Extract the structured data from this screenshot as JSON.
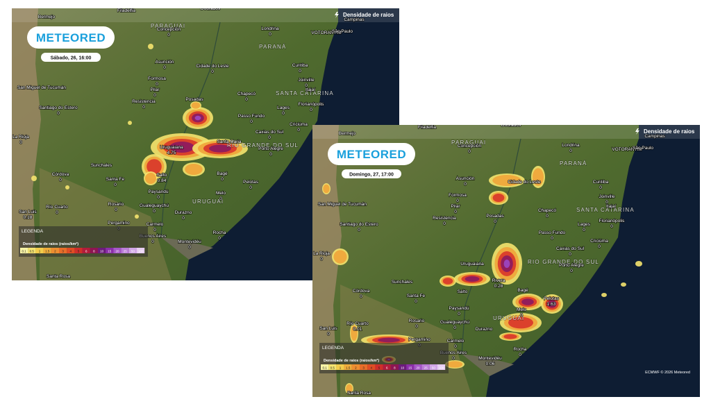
{
  "maps": [
    {
      "header": "Densidade de raios",
      "logo": "METEORED",
      "date": "Sábado, 26, 16:00",
      "legend": {
        "title": "LEGENDA",
        "scale_title": "Densidade de raios (raios/km²)",
        "scale": [
          "0.1",
          "0.5",
          "1",
          "1.5",
          "2",
          "3",
          "4",
          "5",
          "6",
          "8",
          "10",
          "15",
          "20",
          "25",
          "50",
          "100"
        ]
      },
      "regions": [
        "PARAGUAI",
        "PARANÁ",
        "SANTA CATARINA",
        "RIO GRANDE DO SUL",
        "URUGUAI"
      ],
      "labels": [
        {
          "name": "Bermejo"
        },
        {
          "name": "Filadelfia"
        },
        {
          "name": "Dourados"
        },
        {
          "name": "Campinas"
        },
        {
          "name": "Concepción",
          "value": "0"
        },
        {
          "name": "Londrina",
          "value": "0"
        },
        {
          "name": "VOTORANTIM"
        },
        {
          "name": "São Paulo"
        },
        {
          "name": "Asunción",
          "value": "0"
        },
        {
          "name": "Cidade do Leste",
          "value": "0"
        },
        {
          "name": "Curitiba",
          "value": "0"
        },
        {
          "name": "Formosa",
          "value": "0"
        },
        {
          "name": "Joinville",
          "value": "0"
        },
        {
          "name": "Pilar",
          "value": "0"
        },
        {
          "name": "Itajaí"
        },
        {
          "name": "San Miguel de Tucumán"
        },
        {
          "name": "Santiago do Estero",
          "value": "0"
        },
        {
          "name": "Resistencia",
          "value": "0"
        },
        {
          "name": "Posadas"
        },
        {
          "name": "Chapecó",
          "value": "0"
        },
        {
          "name": "Florianópolis",
          "value": "0"
        },
        {
          "name": "Lages",
          "value": "0"
        },
        {
          "name": "Passo Fundo",
          "value": "0"
        },
        {
          "name": "Criciúma",
          "value": "0"
        },
        {
          "name": "Caxias do Sul",
          "value": "0"
        },
        {
          "name": "La Rioja",
          "value": "0"
        },
        {
          "name": "Uruguaiana",
          "value": "4.75"
        },
        {
          "name": "Santa Maria"
        },
        {
          "name": "Porto Alegre",
          "value": "0"
        },
        {
          "name": "Sunchales"
        },
        {
          "name": "Córdova",
          "value": "0"
        },
        {
          "name": "Salto",
          "value": "0.84"
        },
        {
          "name": "Bagé",
          "value": "0"
        },
        {
          "name": "Santa Fe",
          "value": "0"
        },
        {
          "name": "Pelotas",
          "value": "0"
        },
        {
          "name": "Paysandú",
          "value": "0"
        },
        {
          "name": "Rosario",
          "value": "0"
        },
        {
          "name": "Río Cuarto",
          "value": "0"
        },
        {
          "name": "Gualeguaychú",
          "value": "0"
        },
        {
          "name": "Melo",
          "value": "0"
        },
        {
          "name": "San Luis",
          "value": "0.18"
        },
        {
          "name": "Durazno",
          "value": "0"
        },
        {
          "name": "Pergamino",
          "value": "0"
        },
        {
          "name": "Rocha",
          "value": "0"
        },
        {
          "name": "Carmelo",
          "value": "0"
        },
        {
          "name": "Buenos Aires",
          "value": "0"
        },
        {
          "name": "Montevidéu",
          "value": "0"
        },
        {
          "name": "Santa Rosa"
        }
      ]
    },
    {
      "header": "Densidade de raios",
      "logo": "METEORED",
      "date": "Domingo, 27, 17:00",
      "legend": {
        "title": "LEGENDA",
        "scale_title": "Densidade de raios (raios/km²)",
        "scale": [
          "0.1",
          "0.5",
          "1",
          "1.5",
          "2",
          "3",
          "4",
          "5",
          "6",
          "8",
          "10",
          "15",
          "20",
          "25",
          "50",
          "100"
        ]
      },
      "regions": [
        "PARAGUAI",
        "PARANÁ",
        "SANTA CATARINA",
        "RIO GRANDE DO SUL",
        "URUGUAI"
      ],
      "credit": "ECMWF © 2026 Meteored",
      "labels": [
        {
          "name": "Bermejo"
        },
        {
          "name": "Filadelfia"
        },
        {
          "name": "Dourados"
        },
        {
          "name": "Campinas"
        },
        {
          "name": "Concepción",
          "value": "0"
        },
        {
          "name": "Londrina",
          "value": "0"
        },
        {
          "name": "VOTORANTIM"
        },
        {
          "name": "São Paulo"
        },
        {
          "name": "Asunción",
          "value": "0"
        },
        {
          "name": "Cidade do Leste"
        },
        {
          "name": "Curitiba",
          "value": "0"
        },
        {
          "name": "Formosa",
          "value": "0"
        },
        {
          "name": "Joinville",
          "value": "0"
        },
        {
          "name": "Pilar",
          "value": "0"
        },
        {
          "name": "Itajaí"
        },
        {
          "name": "San Miguel de Tucumán"
        },
        {
          "name": "Santiago do Estero",
          "value": "0"
        },
        {
          "name": "Resistencia",
          "value": "0"
        },
        {
          "name": "Posadas",
          "value": "0"
        },
        {
          "name": "Chapecó",
          "value": "0"
        },
        {
          "name": "Florianópolis",
          "value": "0"
        },
        {
          "name": "Lages",
          "value": "0"
        },
        {
          "name": "Passo Fundo",
          "value": "0"
        },
        {
          "name": "Criciúma",
          "value": "0"
        },
        {
          "name": "Caxias do Sul",
          "value": "0"
        },
        {
          "name": "La Rioja",
          "value": "0"
        },
        {
          "name": "Uruguaiana"
        },
        {
          "name": "Rivera",
          "value": "0.28"
        },
        {
          "name": "Porto Alegre",
          "value": "0"
        },
        {
          "name": "Sunchales"
        },
        {
          "name": "Córdova",
          "value": "0"
        },
        {
          "name": "Salto"
        },
        {
          "name": "Bagé"
        },
        {
          "name": "Santa Fe",
          "value": "0"
        },
        {
          "name": "Pelotas",
          "value": "1.63"
        },
        {
          "name": "Paysandú",
          "value": "0"
        },
        {
          "name": "Rosario",
          "value": "0"
        },
        {
          "name": "Río Cuarto",
          "value": "0.01"
        },
        {
          "name": "Gualeguaychú",
          "value": "0"
        },
        {
          "name": "Melo",
          "value": "0"
        },
        {
          "name": "San Luis",
          "value": "0"
        },
        {
          "name": "Durazno"
        },
        {
          "name": "Pergamino",
          "value": "0"
        },
        {
          "name": "Rocha",
          "value": "0"
        },
        {
          "name": "Carmelo",
          "value": "0"
        },
        {
          "name": "Buenos Aires",
          "value": "0"
        },
        {
          "name": "Montevidéu",
          "value": "0.06"
        },
        {
          "name": "Santa Rosa"
        }
      ]
    }
  ]
}
